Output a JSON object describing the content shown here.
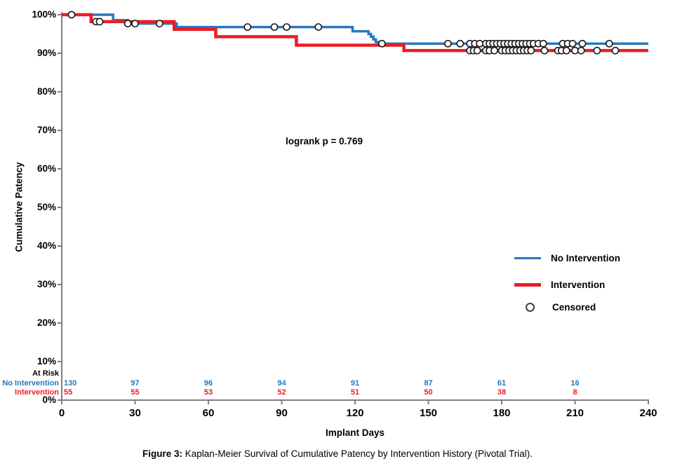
{
  "caption": {
    "prefix": "Figure 3:",
    "text": " Kaplan-Meier Survival of Cumulative Patency by Intervention History (Pivotal Trial)."
  },
  "chart_data": {
    "type": "line",
    "subtype": "kaplan-meier-step",
    "annotation": "logrank p = 0.769",
    "axis_color": "#808080",
    "censor_marker": {
      "shape": "circle",
      "fill": "#ffffff",
      "stroke": "#1a1a1a"
    },
    "x": {
      "label": "Implant Days",
      "min": 0,
      "max": 240,
      "tick_step": 30,
      "ticks": [
        0,
        30,
        60,
        90,
        120,
        150,
        180,
        210,
        240
      ]
    },
    "y": {
      "label": "Cumulative Patency",
      "min": 0,
      "max": 100,
      "tick_step": 10,
      "unit": "%",
      "ticks": [
        0,
        10,
        20,
        30,
        40,
        50,
        60,
        70,
        80,
        90,
        100
      ]
    },
    "legend": {
      "position": "right-middle",
      "items": [
        {
          "label": "No Intervention",
          "swatch": "line",
          "color": "#2878BE"
        },
        {
          "label": "Intervention",
          "swatch": "line",
          "color": "#EC1C24"
        },
        {
          "label": "Censored",
          "swatch": "circle",
          "color": "#404040"
        }
      ]
    },
    "series": [
      {
        "name": "No Intervention",
        "color": "#2878BE",
        "stroke_width": 3.5,
        "steps": [
          [
            0,
            100
          ],
          [
            21,
            98.6
          ],
          [
            27,
            97.7
          ],
          [
            47,
            96.8
          ],
          [
            119,
            95.7
          ],
          [
            125.5,
            95.0
          ],
          [
            126.5,
            94.3
          ],
          [
            127.5,
            93.6
          ],
          [
            128.5,
            92.9
          ],
          [
            129.5,
            92.5
          ]
        ],
        "censored": [
          4,
          27,
          30,
          40,
          76,
          87,
          92,
          105,
          131,
          158,
          163,
          167,
          169,
          171,
          173.5,
          175,
          176.5,
          178,
          179.5,
          181,
          182.5,
          184,
          185.5,
          187,
          188.5,
          190,
          191.5,
          193,
          195,
          197,
          205,
          207,
          209,
          213,
          224
        ]
      },
      {
        "name": "Intervention",
        "color": "#EC1C24",
        "stroke_width": 4.5,
        "steps": [
          [
            0,
            100
          ],
          [
            12,
            98.2
          ],
          [
            46,
            96.2
          ],
          [
            63,
            94.3
          ],
          [
            96,
            92.1
          ],
          [
            140,
            90.7
          ]
        ],
        "censored": [
          14,
          15.5,
          167,
          168.5,
          170,
          173.5,
          175,
          177,
          180,
          181.5,
          183,
          184.5,
          186,
          187.5,
          189,
          190.5,
          192,
          197.5,
          203,
          204.5,
          206.5,
          210,
          212.5,
          219,
          226.5
        ]
      }
    ],
    "at_risk": {
      "label": "At Risk",
      "time_points": [
        0,
        30,
        60,
        90,
        120,
        150,
        180,
        210
      ],
      "rows": [
        {
          "name": "No Intervention",
          "color": "#2878BE",
          "values": [
            130,
            97,
            96,
            94,
            91,
            87,
            61,
            16
          ]
        },
        {
          "name": "Intervention",
          "color": "#EC1C24",
          "values": [
            55,
            55,
            53,
            52,
            51,
            50,
            38,
            8
          ]
        }
      ]
    }
  }
}
